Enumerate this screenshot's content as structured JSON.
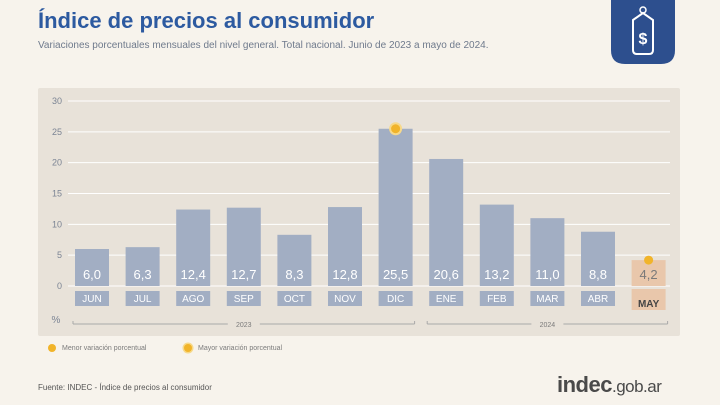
{
  "header": {
    "title": "Índice de precios al consumidor",
    "subtitle": "Variaciones porcentuales mensuales del nivel general. Total nacional. Junio de 2023 a mayo de 2024."
  },
  "chart_data": {
    "type": "bar",
    "categories": [
      "JUN",
      "JUL",
      "AGO",
      "SEP",
      "OCT",
      "NOV",
      "DIC",
      "ENE",
      "FEB",
      "MAR",
      "ABR",
      "MAY"
    ],
    "values": [
      6.0,
      6.3,
      12.4,
      12.7,
      8.3,
      12.8,
      25.5,
      20.6,
      13.2,
      11.0,
      8.8,
      4.2
    ],
    "value_labels": [
      "6,0",
      "6,3",
      "12,4",
      "12,7",
      "8,3",
      "12,8",
      "25,5",
      "20,6",
      "13,2",
      "11,0",
      "8,8",
      "4,2"
    ],
    "yticks": [
      0,
      5,
      10,
      15,
      20,
      25,
      30
    ],
    "ylim": [
      0,
      30
    ],
    "yunit": "%",
    "year_labels": [
      {
        "label": "2023",
        "from": 0,
        "to": 6
      },
      {
        "label": "2024",
        "from": 7,
        "to": 11
      }
    ],
    "highlight_max_index": 6,
    "highlight_min_index": 11,
    "colors": {
      "bar": "#a2aec3",
      "bar_min": "#e9c7ab",
      "marker": "#f1b42a",
      "label": "#ffffff",
      "label_min": "#7a7a7a",
      "grid": "#ffffff",
      "title": "#2d5aa0"
    }
  },
  "legend": {
    "min_label": "Menor variación porcentual",
    "max_label": "Mayor variación porcentual"
  },
  "footer": {
    "source": "Fuente: INDEC - Índice de precios al consumidor",
    "logo_a": "indec",
    "logo_b": ".gob.ar"
  },
  "badge": {
    "icon": "price-tag-dollar-icon",
    "color": "#2d4f8e"
  }
}
